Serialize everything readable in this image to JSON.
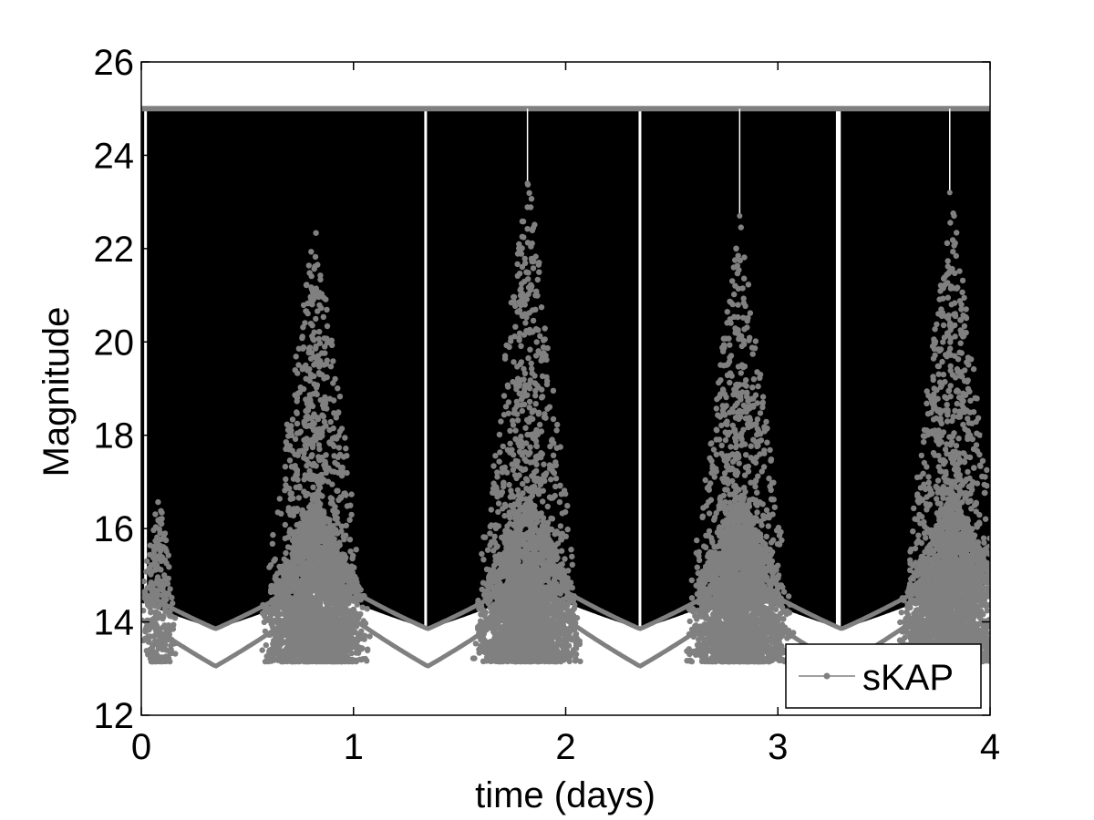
{
  "chart_data": {
    "type": "scatter",
    "title": "",
    "xlabel": "time (days)",
    "ylabel": "Magnitude",
    "xlim": [
      0,
      4
    ],
    "ylim": [
      12,
      26
    ],
    "xticks": [
      0,
      1,
      2,
      3,
      4
    ],
    "yticks": [
      12,
      14,
      16,
      18,
      20,
      22,
      24,
      26
    ],
    "grid": false,
    "legend_position": "bottom-right",
    "colors": {
      "series": "#808080",
      "background": "#000000"
    },
    "series": [
      {
        "name": "sKAP",
        "marker": "dot-line",
        "saturation_level": 25,
        "baseline_upper": 13.85,
        "baseline_lower": 13.05,
        "baseline_minima_x": [
          0.35,
          1.35,
          2.35,
          3.3
        ],
        "outburst_peaks": [
          {
            "x": 0.08,
            "peak": 16.7
          },
          {
            "x": 0.82,
            "peak": 22.9
          },
          {
            "x": 1.82,
            "peak": 23.8
          },
          {
            "x": 2.82,
            "peak": 22.7
          },
          {
            "x": 3.82,
            "peak": 23.2
          }
        ],
        "vertical_gaps_x": [
          0.02,
          1.34,
          2.35,
          3.28,
          3.29
        ],
        "vertical_spikes": [
          {
            "x": 1.82,
            "to": 23.4
          },
          {
            "x": 2.82,
            "to": 22.7
          },
          {
            "x": 3.81,
            "to": 23.2
          }
        ]
      }
    ]
  }
}
